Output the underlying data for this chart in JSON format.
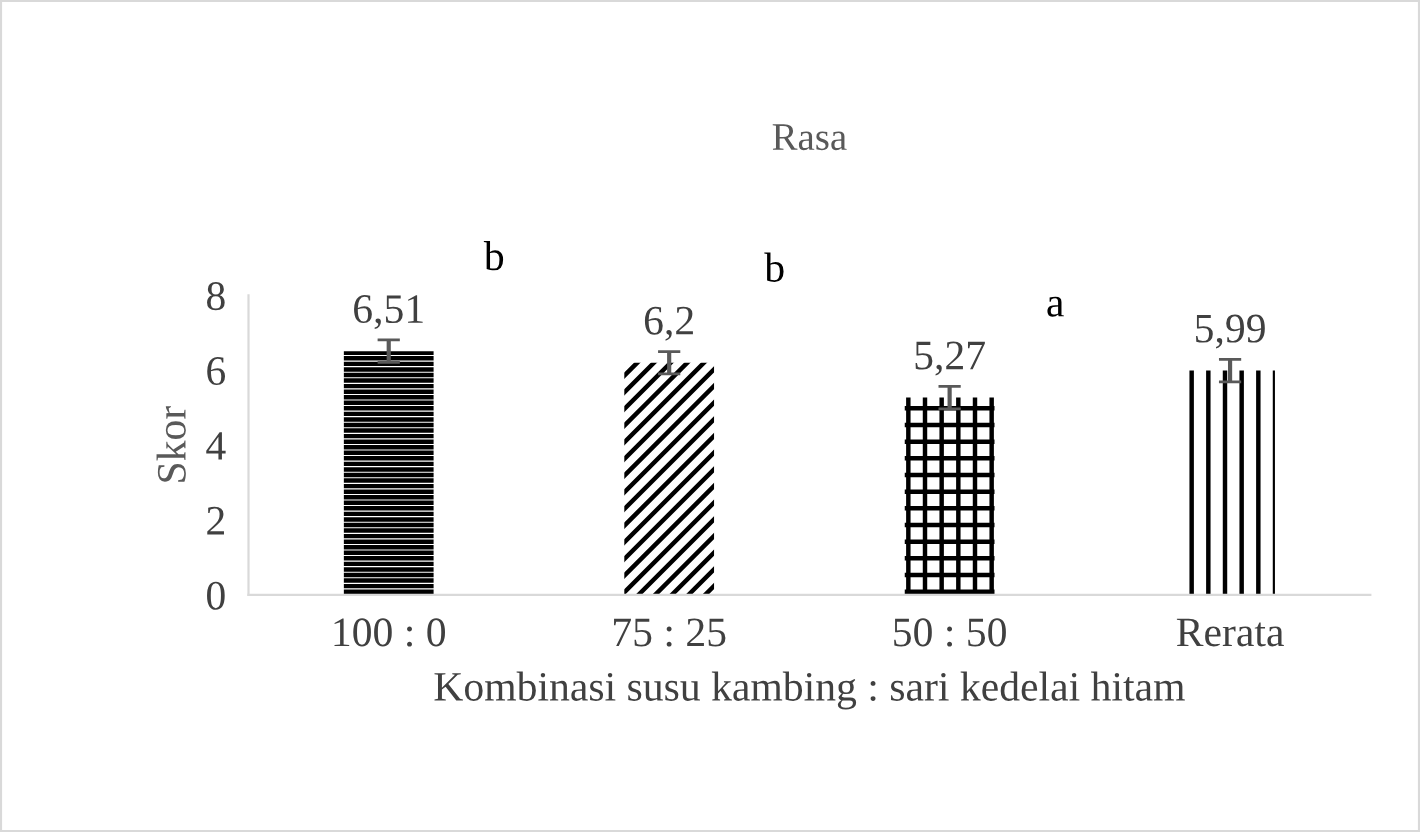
{
  "chart_data": {
    "type": "bar",
    "title": "Rasa",
    "xlabel": "Kombinasi susu kambing : sari kedelai hitam",
    "ylabel": "Skor",
    "categories": [
      "100 : 0",
      "75 : 25",
      "50 : 50",
      "Rerata"
    ],
    "values": [
      6.51,
      6.2,
      5.27,
      5.99
    ],
    "value_labels": [
      "6,51",
      "6,2",
      "5,27",
      "5,99"
    ],
    "errors": [
      0.3,
      0.3,
      0.3,
      0.3
    ],
    "color": "#000000",
    "annotations": [
      "b",
      "b",
      "a"
    ],
    "ylim": [
      0,
      8
    ],
    "yticks": [
      0,
      2,
      4,
      6,
      8
    ],
    "grid": false
  }
}
